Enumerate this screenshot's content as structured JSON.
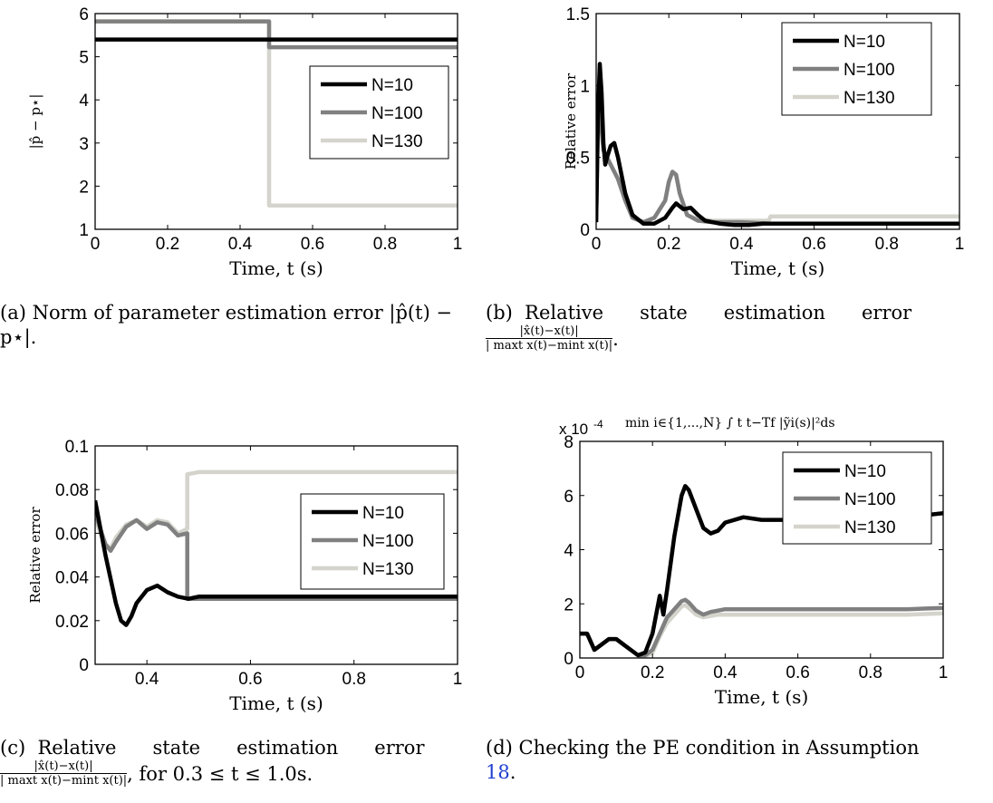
{
  "chart_data": [
    {
      "id": "a",
      "type": "line",
      "xlabel": "Time, t (s)",
      "ylabel": "|p̂ − p⋆|",
      "xlim": [
        0,
        1
      ],
      "ylim": [
        1,
        6
      ],
      "xticks": [
        0,
        0.2,
        0.4,
        0.6,
        0.8,
        1
      ],
      "xtick_labels": [
        "0",
        "0.2",
        "0.4",
        "0.6",
        "0.8",
        "1"
      ],
      "yticks": [
        1,
        2,
        3,
        4,
        5,
        6
      ],
      "ytick_labels": [
        "1",
        "2",
        "3",
        "4",
        "5",
        "6"
      ],
      "legend": "center-right",
      "series": [
        {
          "name": "N=10",
          "color": "#000000",
          "x": [
            0,
            1
          ],
          "y": [
            5.4,
            5.4
          ]
        },
        {
          "name": "N=100",
          "color": "#808080",
          "x": [
            0,
            0.48,
            0.48,
            1
          ],
          "y": [
            5.82,
            5.82,
            5.22,
            5.22
          ]
        },
        {
          "name": "N=130",
          "color": "#d4d4cc",
          "x": [
            0,
            0.48,
            0.48,
            1
          ],
          "y": [
            5.82,
            5.82,
            1.55,
            1.55
          ]
        }
      ],
      "caption": "(a) Norm of parameter estimation error |p̂(t) − p⋆|."
    },
    {
      "id": "b",
      "type": "line",
      "xlabel": "Time, t (s)",
      "ylabel": "Relative error",
      "xlim": [
        0,
        1
      ],
      "ylim": [
        0,
        1.5
      ],
      "xticks": [
        0,
        0.2,
        0.4,
        0.6,
        0.8,
        1
      ],
      "xtick_labels": [
        "0",
        "0.2",
        "0.4",
        "0.6",
        "0.8",
        "1"
      ],
      "yticks": [
        0,
        0.5,
        1,
        1.5
      ],
      "ytick_labels": [
        "0",
        "0.5",
        "1",
        "1.5"
      ],
      "legend": "top-right",
      "series": [
        {
          "name": "N=10",
          "color": "#000000",
          "x": [
            0,
            0.005,
            0.01,
            0.015,
            0.02,
            0.025,
            0.03,
            0.04,
            0.05,
            0.06,
            0.08,
            0.1,
            0.13,
            0.16,
            0.19,
            0.21,
            0.22,
            0.24,
            0.26,
            0.28,
            0.3,
            0.34,
            0.38,
            0.42,
            0.46,
            0.5,
            1
          ],
          "y": [
            0.05,
            0.8,
            1.15,
            0.95,
            0.6,
            0.45,
            0.5,
            0.58,
            0.6,
            0.5,
            0.25,
            0.1,
            0.04,
            0.04,
            0.08,
            0.15,
            0.18,
            0.14,
            0.15,
            0.1,
            0.06,
            0.04,
            0.03,
            0.03,
            0.04,
            0.04,
            0.04
          ]
        },
        {
          "name": "N=100",
          "color": "#808080",
          "x": [
            0,
            0.005,
            0.01,
            0.015,
            0.02,
            0.03,
            0.04,
            0.06,
            0.08,
            0.1,
            0.13,
            0.16,
            0.19,
            0.2,
            0.21,
            0.22,
            0.23,
            0.25,
            0.28,
            0.32,
            0.4,
            0.48,
            1
          ],
          "y": [
            0.05,
            0.8,
            0.95,
            0.7,
            0.55,
            0.5,
            0.45,
            0.35,
            0.2,
            0.08,
            0.05,
            0.08,
            0.2,
            0.33,
            0.4,
            0.38,
            0.25,
            0.1,
            0.06,
            0.05,
            0.05,
            0.04,
            0.04
          ]
        },
        {
          "name": "N=130",
          "color": "#d4d4cc",
          "x": [
            0,
            0.005,
            0.01,
            0.015,
            0.02,
            0.03,
            0.04,
            0.06,
            0.08,
            0.1,
            0.13,
            0.16,
            0.19,
            0.2,
            0.21,
            0.22,
            0.23,
            0.25,
            0.28,
            0.32,
            0.4,
            0.475,
            0.48,
            1
          ],
          "y": [
            0.05,
            0.8,
            0.93,
            0.7,
            0.55,
            0.5,
            0.45,
            0.35,
            0.2,
            0.08,
            0.05,
            0.08,
            0.2,
            0.33,
            0.4,
            0.38,
            0.25,
            0.1,
            0.07,
            0.06,
            0.06,
            0.06,
            0.09,
            0.09
          ]
        }
      ],
      "caption": "(b) Relative state estimation error"
    },
    {
      "id": "c",
      "type": "line",
      "xlabel": "Time, t (s)",
      "ylabel": "Relative error",
      "xlim": [
        0.3,
        1
      ],
      "ylim": [
        0,
        0.1
      ],
      "xticks": [
        0.4,
        0.6,
        0.8,
        1
      ],
      "xtick_labels": [
        "0.4",
        "0.6",
        "0.8",
        "1"
      ],
      "yticks": [
        0,
        0.02,
        0.04,
        0.06,
        0.08,
        0.1
      ],
      "ytick_labels": [
        "0",
        "0.02",
        "0.04",
        "0.06",
        "0.08",
        "0.1"
      ],
      "legend": "center-right",
      "series": [
        {
          "name": "N=10",
          "color": "#000000",
          "x": [
            0.3,
            0.32,
            0.34,
            0.35,
            0.36,
            0.37,
            0.38,
            0.4,
            0.42,
            0.44,
            0.46,
            0.48,
            0.5,
            1
          ],
          "y": [
            0.075,
            0.05,
            0.028,
            0.02,
            0.018,
            0.022,
            0.028,
            0.034,
            0.036,
            0.033,
            0.031,
            0.03,
            0.031,
            0.031
          ]
        },
        {
          "name": "N=100",
          "color": "#808080",
          "x": [
            0.3,
            0.31,
            0.32,
            0.33,
            0.34,
            0.36,
            0.38,
            0.4,
            0.42,
            0.44,
            0.46,
            0.478,
            0.478,
            0.5,
            1
          ],
          "y": [
            0.07,
            0.062,
            0.055,
            0.052,
            0.056,
            0.063,
            0.066,
            0.062,
            0.065,
            0.064,
            0.059,
            0.06,
            0.03,
            0.03,
            0.03
          ]
        },
        {
          "name": "N=130",
          "color": "#d4d4cc",
          "x": [
            0.3,
            0.31,
            0.32,
            0.33,
            0.34,
            0.36,
            0.38,
            0.4,
            0.42,
            0.44,
            0.46,
            0.478,
            0.478,
            0.5,
            1
          ],
          "y": [
            0.068,
            0.06,
            0.055,
            0.053,
            0.058,
            0.064,
            0.066,
            0.063,
            0.066,
            0.065,
            0.06,
            0.062,
            0.087,
            0.088,
            0.088
          ]
        }
      ],
      "caption": "(c) Relative state estimation error"
    },
    {
      "id": "d",
      "type": "line",
      "title": "min i∈{1,...,N} ∫ t t−Tf |ỹi(s)|²ds",
      "xlabel": "Time, t (s)",
      "ylabel": "",
      "exponent_label": "x 10",
      "exponent_power": "-4",
      "xlim": [
        0,
        1
      ],
      "ylim": [
        0,
        8
      ],
      "xticks": [
        0,
        0.2,
        0.4,
        0.6,
        0.8,
        1
      ],
      "xtick_labels": [
        "0",
        "0.2",
        "0.4",
        "0.6",
        "0.8",
        "1"
      ],
      "yticks": [
        0,
        2,
        4,
        6,
        8
      ],
      "ytick_labels": [
        "0",
        "2",
        "4",
        "6",
        "8"
      ],
      "legend": "top-right",
      "series": [
        {
          "name": "N=10",
          "color": "#000000",
          "x": [
            0,
            0.02,
            0.04,
            0.06,
            0.08,
            0.1,
            0.12,
            0.14,
            0.16,
            0.18,
            0.2,
            0.22,
            0.23,
            0.24,
            0.26,
            0.28,
            0.29,
            0.3,
            0.32,
            0.34,
            0.36,
            0.38,
            0.4,
            0.45,
            0.5,
            0.6,
            0.7,
            0.8,
            0.9,
            1
          ],
          "y": [
            0.9,
            0.9,
            0.3,
            0.5,
            0.7,
            0.7,
            0.5,
            0.3,
            0.1,
            0.2,
            0.9,
            2.3,
            1.6,
            2.5,
            4.5,
            6.0,
            6.35,
            6.2,
            5.5,
            4.8,
            4.6,
            4.7,
            5.0,
            5.2,
            5.1,
            5.1,
            5.15,
            5.1,
            5.2,
            5.35
          ]
        },
        {
          "name": "N=100",
          "color": "#808080",
          "x": [
            0,
            0.02,
            0.04,
            0.06,
            0.08,
            0.1,
            0.12,
            0.14,
            0.16,
            0.18,
            0.2,
            0.22,
            0.24,
            0.26,
            0.28,
            0.29,
            0.3,
            0.32,
            0.34,
            0.36,
            0.38,
            0.4,
            0.5,
            0.6,
            0.7,
            0.8,
            0.9,
            1
          ],
          "y": [
            0.9,
            0.9,
            0.3,
            0.5,
            0.7,
            0.7,
            0.5,
            0.3,
            0.1,
            0.1,
            0.3,
            0.9,
            1.5,
            1.8,
            2.1,
            2.15,
            2.05,
            1.75,
            1.6,
            1.7,
            1.75,
            1.8,
            1.8,
            1.8,
            1.8,
            1.8,
            1.8,
            1.85
          ]
        },
        {
          "name": "N=130",
          "color": "#d4d4cc",
          "x": [
            0,
            0.02,
            0.04,
            0.06,
            0.08,
            0.1,
            0.12,
            0.14,
            0.16,
            0.18,
            0.2,
            0.22,
            0.24,
            0.26,
            0.28,
            0.29,
            0.3,
            0.32,
            0.34,
            0.36,
            0.38,
            0.4,
            0.5,
            0.6,
            0.7,
            0.8,
            0.9,
            1
          ],
          "y": [
            0.9,
            0.9,
            0.3,
            0.5,
            0.7,
            0.7,
            0.5,
            0.3,
            0.1,
            0.05,
            0.2,
            0.8,
            1.3,
            1.6,
            1.9,
            1.95,
            1.85,
            1.6,
            1.5,
            1.55,
            1.6,
            1.6,
            1.6,
            1.6,
            1.6,
            1.6,
            1.6,
            1.65
          ]
        }
      ],
      "caption": "(d) Checking the PE condition in Assumption 18."
    }
  ],
  "captions": {
    "a_line1": "(a) Norm of parameter estimation error |p̂(t) −",
    "a_line2": "p⋆|.",
    "b_line1": "(b)  Relative      state      estimation      error",
    "b_frac_num": "|x̂(t)−x(t)|",
    "b_frac_den": "| maxt x(t)−mint x(t)|",
    "c_line1": "(c)  Relative      state      estimation      error",
    "c_frac_num": "|x̂(t)−x(t)|",
    "c_frac_den": "| maxt x(t)−mint x(t)|",
    "c_tail": ", for 0.3 ≤ t ≤ 1.0s.",
    "d_line1": "(d) Checking the PE condition in Assumption",
    "d_ref": "18",
    "d_tail": "."
  }
}
